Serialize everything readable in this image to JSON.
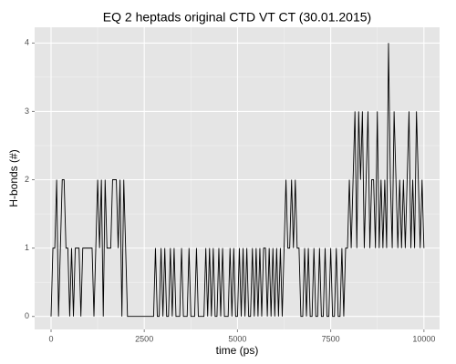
{
  "chart_data": {
    "type": "line",
    "title": "EQ 2 heptads original CTD VT CT (30.01.2015)",
    "xlabel": "time (ps)",
    "ylabel": "H-bonds (#)",
    "color": "#000000",
    "grid": true,
    "xlim": [
      -440,
      10420
    ],
    "ylim": [
      -0.19,
      4.23
    ],
    "xticks": [
      0,
      2500,
      5000,
      7500,
      10000
    ],
    "yticks": [
      0,
      1,
      2,
      3,
      4
    ],
    "x": [
      0,
      50,
      100,
      150,
      200,
      250,
      300,
      350,
      400,
      450,
      500,
      550,
      600,
      650,
      700,
      750,
      800,
      850,
      900,
      950,
      1000,
      1050,
      1100,
      1150,
      1200,
      1250,
      1300,
      1350,
      1400,
      1450,
      1500,
      1550,
      1600,
      1650,
      1700,
      1750,
      1800,
      1850,
      1900,
      1950,
      2000,
      2050,
      2100,
      2150,
      2200,
      2250,
      2300,
      2350,
      2400,
      2450,
      2500,
      2550,
      2600,
      2650,
      2700,
      2750,
      2800,
      2850,
      2900,
      2950,
      3000,
      3050,
      3100,
      3150,
      3200,
      3250,
      3300,
      3350,
      3400,
      3450,
      3500,
      3550,
      3600,
      3650,
      3700,
      3750,
      3800,
      3850,
      3900,
      3950,
      4000,
      4050,
      4100,
      4150,
      4200,
      4250,
      4300,
      4350,
      4400,
      4450,
      4500,
      4550,
      4600,
      4650,
      4700,
      4750,
      4800,
      4850,
      4900,
      4950,
      5000,
      5050,
      5100,
      5150,
      5200,
      5250,
      5300,
      5350,
      5400,
      5450,
      5500,
      5550,
      5600,
      5650,
      5700,
      5750,
      5800,
      5850,
      5900,
      5950,
      6000,
      6050,
      6100,
      6150,
      6200,
      6250,
      6300,
      6350,
      6400,
      6450,
      6500,
      6550,
      6600,
      6650,
      6700,
      6750,
      6800,
      6850,
      6900,
      6950,
      7000,
      7050,
      7100,
      7150,
      7200,
      7250,
      7300,
      7350,
      7400,
      7450,
      7500,
      7550,
      7600,
      7650,
      7700,
      7750,
      7800,
      7850,
      7900,
      7950,
      8000,
      8050,
      8100,
      8150,
      8200,
      8250,
      8300,
      8350,
      8400,
      8450,
      8500,
      8550,
      8600,
      8650,
      8700,
      8750,
      8800,
      8850,
      8900,
      8950,
      9000,
      9050,
      9100,
      9150,
      9200,
      9250,
      9300,
      9350,
      9400,
      9450,
      9500,
      9550,
      9600,
      9650,
      9700,
      9750,
      9800,
      9850,
      9900,
      9950,
      10000
    ],
    "values": [
      0,
      1,
      1,
      2,
      0,
      1,
      2,
      2,
      1,
      1,
      0,
      1,
      0,
      1,
      1,
      1,
      0,
      1,
      1,
      1,
      1,
      1,
      1,
      0,
      1,
      2,
      1,
      2,
      0,
      2,
      1,
      1,
      1,
      2,
      2,
      2,
      1,
      2,
      0,
      2,
      1,
      0,
      0,
      0,
      0,
      0,
      0,
      0,
      0,
      0,
      0,
      0,
      0,
      0,
      0,
      0,
      1,
      0,
      0,
      1,
      0,
      1,
      0,
      0,
      1,
      0,
      1,
      0,
      0,
      0,
      1,
      0,
      0,
      0,
      1,
      0,
      0,
      0,
      1,
      0,
      0,
      0,
      0,
      1,
      0,
      1,
      0,
      1,
      0,
      0,
      1,
      0,
      1,
      0,
      0,
      0,
      1,
      0,
      1,
      0,
      0,
      1,
      0,
      1,
      0,
      1,
      0,
      0,
      1,
      0,
      1,
      0,
      1,
      0,
      1,
      1,
      0,
      1,
      0,
      1,
      0,
      1,
      0,
      1,
      0,
      1,
      2,
      1,
      1,
      2,
      1,
      2,
      1,
      1,
      0,
      0,
      1,
      0,
      1,
      0,
      0,
      1,
      0,
      0,
      1,
      0,
      0,
      1,
      0,
      0,
      1,
      0,
      0,
      1,
      0,
      0,
      1,
      0,
      1,
      1,
      2,
      1,
      2,
      3,
      1,
      3,
      2,
      3,
      1,
      2,
      3,
      1,
      2,
      2,
      1,
      3,
      1,
      2,
      1,
      2,
      1,
      4,
      2,
      1,
      3,
      2,
      1,
      2,
      1,
      2,
      1,
      2,
      3,
      1,
      2,
      1,
      3,
      2,
      1,
      2,
      1
    ]
  }
}
